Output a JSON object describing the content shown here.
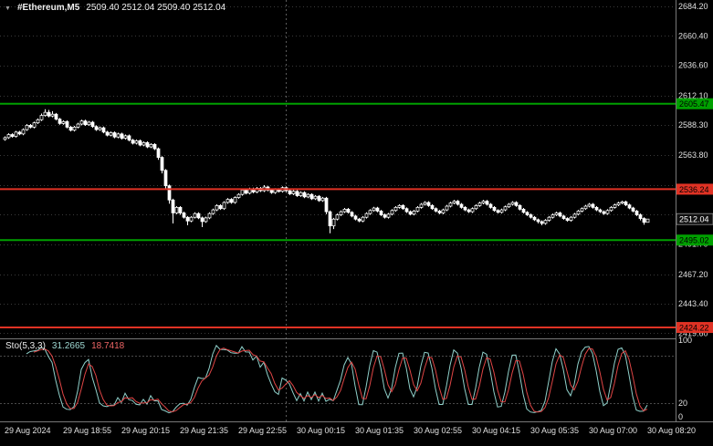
{
  "header": {
    "dropdown_icon": "▼",
    "symbol": "#Ethereum,M5",
    "ohlc": "2509.40 2512.04 2509.40 2512.04"
  },
  "indicator_label": {
    "name": "Sto(5,3,3)",
    "main": "31.2665",
    "signal": "18.7418"
  },
  "colors": {
    "background": "#000000",
    "grid": "#3a3a3a",
    "candle_outline": "#ffffff",
    "bull_fill": "#000000",
    "bear_fill": "#ffffff",
    "support_green": "#00a000",
    "resistance_red": "#e03224",
    "stoch_main": "#8fd0ca",
    "stoch_signal": "#e04545",
    "separator": "#787878",
    "day_separator": "#5c5c5c",
    "axis_text": "#e0e0e0",
    "price_label_bg": "#101010",
    "price_label_text": "#ffffff"
  },
  "chart_data": {
    "type": "candlestick",
    "symbol": "#Ethereum,M5",
    "timeframe_minutes": 5,
    "ylim": [
      2416.5,
      2689.5
    ],
    "price_ticks": [
      [
        2684.2,
        "2684.20"
      ],
      [
        2660.4,
        "2660.40"
      ],
      [
        2636.6,
        "2636.60"
      ],
      [
        2612.1,
        "2612.10"
      ],
      [
        2588.3,
        "2588.30"
      ],
      [
        2563.8,
        "2563.80"
      ],
      [
        2539.8,
        ""
      ],
      [
        2515.8,
        ""
      ],
      [
        2491.7,
        "2491.70"
      ],
      [
        2467.2,
        "2467.20"
      ],
      [
        2443.4,
        "2443.40"
      ],
      [
        2419.6,
        "2419.60"
      ]
    ],
    "hlines": [
      {
        "price": 2605.47,
        "label": "2605.47",
        "color": "#00a000"
      },
      {
        "price": 2536.24,
        "label": "2536.24",
        "color": "#e03224"
      },
      {
        "price": 2495.02,
        "label": "2495.02",
        "color": "#00a000"
      },
      {
        "price": 2424.22,
        "label": "2424.22",
        "color": "#e03224"
      }
    ],
    "current_price": {
      "value": 2512.04,
      "label": "2512.04"
    },
    "day_separator_candle_index": 77,
    "x_labels": [
      "29 Aug 2024",
      "29 Aug 18:55",
      "29 Aug 20:15",
      "29 Aug 21:35",
      "29 Aug 22:55",
      "30 Aug 00:15",
      "30 Aug 01:35",
      "30 Aug 02:55",
      "30 Aug 04:15",
      "30 Aug 05:35",
      "30 Aug 07:00",
      "30 Aug 08:20"
    ],
    "indicator": {
      "type": "stochastic",
      "name": "Sto(5,3,3)",
      "params": [
        5,
        3,
        3
      ],
      "last_main": 31.2665,
      "last_signal": 18.7418,
      "levels": [
        20,
        80
      ],
      "ylim": [
        0,
        100
      ],
      "scale_ticks": [
        {
          "v": 100,
          "label": "100"
        },
        {
          "v": 20,
          "label": "20"
        },
        {
          "v": 0,
          "label": "0"
        }
      ]
    },
    "ohlc": [
      [
        2576.5,
        2579.0,
        2575.5,
        2578.0
      ],
      [
        2578.0,
        2581.5,
        2577.0,
        2580.5
      ],
      [
        2580.5,
        2581.5,
        2578.0,
        2579.0
      ],
      [
        2579.0,
        2583.5,
        2578.0,
        2582.5
      ],
      [
        2582.5,
        2583.5,
        2580.0,
        2581.0
      ],
      [
        2581.0,
        2585.5,
        2580.0,
        2584.5
      ],
      [
        2584.5,
        2589.0,
        2583.5,
        2588.0
      ],
      [
        2588.0,
        2589.0,
        2585.5,
        2586.5
      ],
      [
        2586.5,
        2591.0,
        2585.5,
        2590.0
      ],
      [
        2590.0,
        2593.5,
        2589.0,
        2592.5
      ],
      [
        2592.5,
        2597.5,
        2591.5,
        2596.0
      ],
      [
        2596.0,
        2601.0,
        2595.0,
        2598.5
      ],
      [
        2598.5,
        2600.5,
        2594.5,
        2595.5
      ],
      [
        2595.5,
        2599.5,
        2594.5,
        2597.0
      ],
      [
        2597.0,
        2598.0,
        2592.0,
        2593.0
      ],
      [
        2593.0,
        2594.0,
        2588.5,
        2589.5
      ],
      [
        2589.5,
        2592.0,
        2588.5,
        2591.0
      ],
      [
        2591.0,
        2592.0,
        2585.5,
        2586.5
      ],
      [
        2586.5,
        2587.5,
        2583.0,
        2584.0
      ],
      [
        2584.0,
        2587.5,
        2583.0,
        2586.5
      ],
      [
        2586.5,
        2590.0,
        2585.5,
        2589.0
      ],
      [
        2589.0,
        2592.5,
        2588.0,
        2591.5
      ],
      [
        2591.5,
        2592.5,
        2587.5,
        2588.5
      ],
      [
        2588.5,
        2591.5,
        2587.5,
        2590.5
      ],
      [
        2590.5,
        2591.5,
        2586.0,
        2587.0
      ],
      [
        2587.0,
        2588.0,
        2583.5,
        2584.5
      ],
      [
        2584.5,
        2587.0,
        2583.5,
        2586.0
      ],
      [
        2586.0,
        2587.0,
        2581.5,
        2582.5
      ],
      [
        2582.5,
        2583.5,
        2579.0,
        2580.0
      ],
      [
        2580.0,
        2583.0,
        2579.0,
        2582.0
      ],
      [
        2582.0,
        2583.0,
        2577.5,
        2578.5
      ],
      [
        2578.5,
        2582.0,
        2577.5,
        2581.0
      ],
      [
        2581.0,
        2582.0,
        2576.5,
        2577.5
      ],
      [
        2577.5,
        2580.5,
        2576.5,
        2579.5
      ],
      [
        2579.5,
        2580.5,
        2575.0,
        2576.0
      ],
      [
        2576.0,
        2577.0,
        2572.5,
        2573.5
      ],
      [
        2573.5,
        2576.5,
        2572.5,
        2575.5
      ],
      [
        2575.5,
        2576.5,
        2571.0,
        2572.0
      ],
      [
        2572.0,
        2575.0,
        2571.0,
        2574.0
      ],
      [
        2574.0,
        2575.0,
        2569.5,
        2570.5
      ],
      [
        2570.5,
        2573.5,
        2569.5,
        2572.5
      ],
      [
        2572.5,
        2573.5,
        2568.0,
        2569.0
      ],
      [
        2569.0,
        2570.0,
        2560.0,
        2562.0
      ],
      [
        2562.0,
        2563.0,
        2549.0,
        2551.5
      ],
      [
        2551.5,
        2552.5,
        2536.5,
        2539.0
      ],
      [
        2539.0,
        2540.0,
        2524.5,
        2527.5
      ],
      [
        2527.5,
        2528.5,
        2508.5,
        2517.0
      ],
      [
        2517.0,
        2522.5,
        2516.0,
        2521.5
      ],
      [
        2521.5,
        2522.5,
        2515.5,
        2517.0
      ],
      [
        2517.0,
        2518.0,
        2512.5,
        2513.5
      ],
      [
        2513.5,
        2514.5,
        2507.0,
        2510.5
      ],
      [
        2510.5,
        2514.5,
        2509.5,
        2513.5
      ],
      [
        2513.5,
        2517.5,
        2512.5,
        2516.5
      ],
      [
        2516.5,
        2517.5,
        2512.0,
        2513.0
      ],
      [
        2513.0,
        2514.0,
        2505.5,
        2510.0
      ],
      [
        2510.0,
        2514.0,
        2509.0,
        2513.0
      ],
      [
        2513.0,
        2517.5,
        2512.0,
        2516.5
      ],
      [
        2516.5,
        2520.5,
        2515.5,
        2519.5
      ],
      [
        2519.5,
        2524.0,
        2518.5,
        2523.0
      ],
      [
        2523.0,
        2524.0,
        2519.5,
        2520.5
      ],
      [
        2520.5,
        2526.5,
        2519.5,
        2525.5
      ],
      [
        2525.5,
        2529.0,
        2524.5,
        2528.0
      ],
      [
        2528.0,
        2529.0,
        2524.5,
        2525.5
      ],
      [
        2525.5,
        2530.5,
        2524.5,
        2529.5
      ],
      [
        2529.5,
        2533.0,
        2528.5,
        2532.0
      ],
      [
        2532.0,
        2536.5,
        2531.0,
        2535.5
      ],
      [
        2535.5,
        2536.5,
        2532.0,
        2533.0
      ],
      [
        2533.0,
        2537.5,
        2532.0,
        2536.5
      ],
      [
        2536.5,
        2537.5,
        2533.0,
        2534.0
      ],
      [
        2534.0,
        2538.0,
        2533.0,
        2537.0
      ],
      [
        2537.0,
        2538.0,
        2534.0,
        2535.0
      ],
      [
        2535.0,
        2539.5,
        2534.0,
        2538.0
      ],
      [
        2538.0,
        2539.0,
        2534.5,
        2535.5
      ],
      [
        2535.5,
        2536.5,
        2532.5,
        2533.5
      ],
      [
        2533.5,
        2537.0,
        2532.5,
        2536.0
      ],
      [
        2536.0,
        2537.0,
        2533.5,
        2534.5
      ],
      [
        2534.5,
        2538.5,
        2533.5,
        2537.5
      ],
      [
        2537.5,
        2538.5,
        2534.0,
        2535.0
      ],
      [
        2535.0,
        2536.0,
        2531.5,
        2532.5
      ],
      [
        2532.5,
        2535.5,
        2531.5,
        2534.5
      ],
      [
        2534.5,
        2535.5,
        2530.0,
        2531.0
      ],
      [
        2531.0,
        2534.5,
        2530.0,
        2533.5
      ],
      [
        2533.5,
        2534.5,
        2529.0,
        2530.0
      ],
      [
        2530.0,
        2533.0,
        2529.0,
        2532.0
      ],
      [
        2532.0,
        2533.0,
        2527.5,
        2528.5
      ],
      [
        2528.5,
        2531.5,
        2527.5,
        2530.5
      ],
      [
        2530.5,
        2531.5,
        2526.0,
        2527.0
      ],
      [
        2527.0,
        2530.0,
        2526.0,
        2529.0
      ],
      [
        2529.0,
        2530.0,
        2516.0,
        2518.0
      ],
      [
        2518.0,
        2519.0,
        2500.5,
        2506.5
      ],
      [
        2506.5,
        2513.0,
        2504.0,
        2512.0
      ],
      [
        2512.0,
        2516.5,
        2511.0,
        2515.5
      ],
      [
        2515.5,
        2519.0,
        2514.5,
        2518.0
      ],
      [
        2518.0,
        2521.0,
        2517.0,
        2520.0
      ],
      [
        2520.0,
        2521.0,
        2516.5,
        2517.5
      ],
      [
        2517.5,
        2518.5,
        2513.5,
        2514.5
      ],
      [
        2514.5,
        2515.5,
        2511.0,
        2512.0
      ],
      [
        2512.0,
        2513.0,
        2509.5,
        2510.5
      ],
      [
        2510.5,
        2514.5,
        2509.5,
        2513.5
      ],
      [
        2513.5,
        2517.5,
        2512.5,
        2516.5
      ],
      [
        2516.5,
        2520.0,
        2515.5,
        2519.0
      ],
      [
        2519.0,
        2522.0,
        2518.0,
        2521.0
      ],
      [
        2521.0,
        2522.0,
        2517.5,
        2518.5
      ],
      [
        2518.5,
        2519.5,
        2514.5,
        2515.5
      ],
      [
        2515.5,
        2516.5,
        2512.5,
        2513.5
      ],
      [
        2513.5,
        2517.0,
        2512.5,
        2516.0
      ],
      [
        2516.0,
        2520.0,
        2515.0,
        2519.0
      ],
      [
        2519.0,
        2522.5,
        2518.0,
        2521.5
      ],
      [
        2521.5,
        2524.0,
        2520.5,
        2523.0
      ],
      [
        2523.0,
        2524.0,
        2519.5,
        2520.5
      ],
      [
        2520.5,
        2521.5,
        2517.0,
        2518.0
      ],
      [
        2518.0,
        2519.0,
        2515.0,
        2516.0
      ],
      [
        2516.0,
        2519.5,
        2515.0,
        2518.5
      ],
      [
        2518.5,
        2522.5,
        2517.5,
        2521.5
      ],
      [
        2521.5,
        2525.0,
        2520.5,
        2524.0
      ],
      [
        2524.0,
        2526.5,
        2523.0,
        2525.5
      ],
      [
        2525.5,
        2526.5,
        2522.0,
        2523.0
      ],
      [
        2523.0,
        2524.0,
        2519.5,
        2520.5
      ],
      [
        2520.5,
        2521.5,
        2517.5,
        2518.5
      ],
      [
        2518.5,
        2519.5,
        2516.0,
        2517.0
      ],
      [
        2517.0,
        2520.5,
        2516.0,
        2519.5
      ],
      [
        2519.5,
        2523.5,
        2518.5,
        2522.5
      ],
      [
        2522.5,
        2526.0,
        2521.5,
        2525.0
      ],
      [
        2525.0,
        2527.5,
        2524.0,
        2526.5
      ],
      [
        2526.5,
        2527.5,
        2523.0,
        2524.0
      ],
      [
        2524.0,
        2525.0,
        2520.5,
        2521.5
      ],
      [
        2521.5,
        2522.5,
        2518.5,
        2519.5
      ],
      [
        2519.5,
        2520.5,
        2517.0,
        2518.0
      ],
      [
        2518.0,
        2521.5,
        2517.0,
        2520.5
      ],
      [
        2520.5,
        2524.0,
        2519.5,
        2523.0
      ],
      [
        2523.0,
        2526.0,
        2522.0,
        2525.0
      ],
      [
        2525.0,
        2527.5,
        2524.0,
        2526.5
      ],
      [
        2526.5,
        2527.5,
        2523.0,
        2524.0
      ],
      [
        2524.0,
        2525.0,
        2520.5,
        2521.5
      ],
      [
        2521.5,
        2522.5,
        2518.0,
        2519.0
      ],
      [
        2519.0,
        2520.0,
        2516.5,
        2517.5
      ],
      [
        2517.5,
        2520.5,
        2516.5,
        2519.5
      ],
      [
        2519.5,
        2523.0,
        2518.5,
        2522.0
      ],
      [
        2522.0,
        2525.0,
        2521.0,
        2524.0
      ],
      [
        2524.0,
        2526.5,
        2523.0,
        2525.5
      ],
      [
        2525.5,
        2526.5,
        2522.0,
        2523.0
      ],
      [
        2523.0,
        2524.0,
        2519.0,
        2520.0
      ],
      [
        2520.0,
        2521.0,
        2516.5,
        2517.5
      ],
      [
        2517.5,
        2518.5,
        2514.5,
        2515.5
      ],
      [
        2515.5,
        2516.5,
        2512.5,
        2513.5
      ],
      [
        2513.5,
        2514.5,
        2510.5,
        2511.5
      ],
      [
        2511.5,
        2512.5,
        2508.5,
        2510.0
      ],
      [
        2510.0,
        2511.0,
        2507.0,
        2508.5
      ],
      [
        2508.5,
        2512.0,
        2507.5,
        2511.0
      ],
      [
        2511.0,
        2514.5,
        2510.0,
        2513.5
      ],
      [
        2513.5,
        2516.5,
        2512.5,
        2515.5
      ],
      [
        2515.5,
        2518.0,
        2514.5,
        2517.0
      ],
      [
        2517.0,
        2518.0,
        2513.5,
        2514.5
      ],
      [
        2514.5,
        2515.5,
        2511.5,
        2512.5
      ],
      [
        2512.5,
        2513.5,
        2510.0,
        2511.0
      ],
      [
        2511.0,
        2514.5,
        2510.0,
        2513.5
      ],
      [
        2513.5,
        2517.0,
        2512.5,
        2516.0
      ],
      [
        2516.0,
        2519.5,
        2515.0,
        2518.5
      ],
      [
        2518.5,
        2521.5,
        2517.5,
        2520.5
      ],
      [
        2520.5,
        2523.5,
        2519.5,
        2522.5
      ],
      [
        2522.5,
        2525.0,
        2521.5,
        2524.0
      ],
      [
        2524.0,
        2525.0,
        2520.5,
        2521.5
      ],
      [
        2521.5,
        2522.5,
        2518.5,
        2519.5
      ],
      [
        2519.5,
        2520.5,
        2517.0,
        2518.0
      ],
      [
        2518.0,
        2519.0,
        2515.5,
        2516.5
      ],
      [
        2516.5,
        2520.0,
        2515.5,
        2519.0
      ],
      [
        2519.0,
        2522.5,
        2518.0,
        2521.5
      ],
      [
        2521.5,
        2524.5,
        2520.5,
        2523.5
      ],
      [
        2523.5,
        2526.0,
        2522.5,
        2525.0
      ],
      [
        2525.0,
        2527.0,
        2524.0,
        2526.0
      ],
      [
        2526.0,
        2527.0,
        2522.5,
        2523.5
      ],
      [
        2523.5,
        2524.5,
        2520.0,
        2521.0
      ],
      [
        2521.0,
        2522.0,
        2517.5,
        2518.5
      ],
      [
        2518.5,
        2519.5,
        2514.5,
        2515.5
      ],
      [
        2515.5,
        2516.5,
        2511.0,
        2512.5
      ],
      [
        2512.5,
        2513.5,
        2507.5,
        2509.4
      ],
      [
        2509.4,
        2512.04,
        2509.4,
        2512.04
      ]
    ]
  }
}
